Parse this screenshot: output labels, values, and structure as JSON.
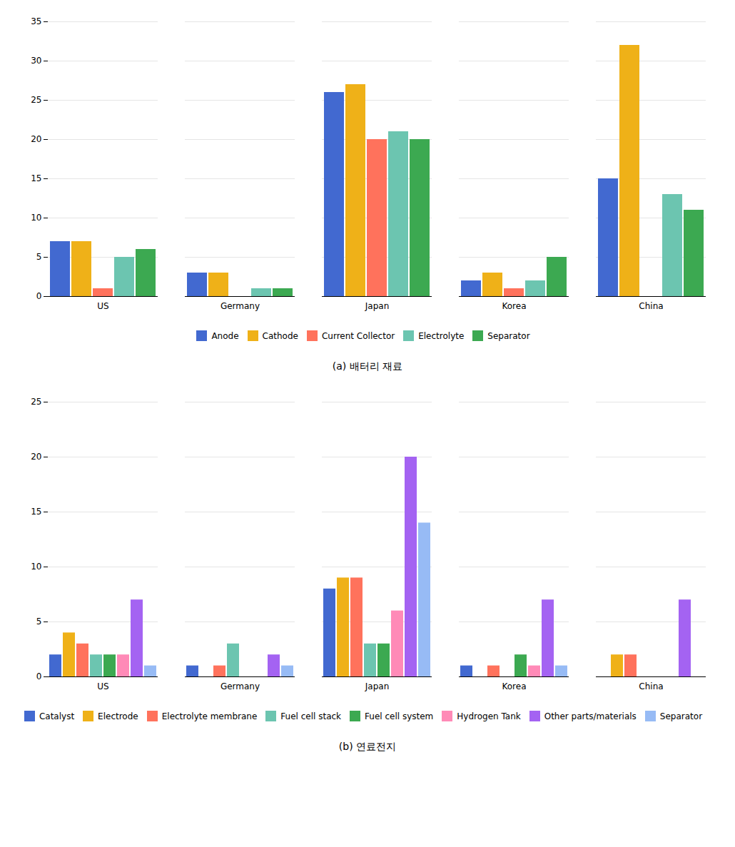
{
  "chart_data": [
    {
      "type": "bar",
      "title": "(a)  배터리 재료",
      "categories": [
        "US",
        "Germany",
        "Japan",
        "Korea",
        "China"
      ],
      "series": [
        {
          "name": "Anode",
          "values": [
            7,
            3,
            26,
            2,
            15
          ]
        },
        {
          "name": "Cathode",
          "values": [
            7,
            3,
            27,
            3,
            32
          ]
        },
        {
          "name": "Current Collector",
          "values": [
            1,
            0,
            20,
            1,
            0
          ]
        },
        {
          "name": "Electrolyte",
          "values": [
            5,
            1,
            21,
            2,
            13
          ]
        },
        {
          "name": "Separator",
          "values": [
            6,
            1,
            20,
            5,
            11
          ]
        }
      ],
      "ylim": [
        0,
        35
      ],
      "yticks": [
        0,
        5,
        10,
        15,
        20,
        25,
        30,
        35
      ],
      "grid": true,
      "legend": "bottom"
    },
    {
      "type": "bar",
      "title": "(b)  연료전지",
      "categories": [
        "US",
        "Germany",
        "Japan",
        "Korea",
        "China"
      ],
      "series": [
        {
          "name": "Catalyst",
          "values": [
            2,
            1,
            8,
            1,
            0
          ]
        },
        {
          "name": "Electrode",
          "values": [
            4,
            0,
            9,
            0,
            2
          ]
        },
        {
          "name": "Electrolyte membrane",
          "values": [
            3,
            1,
            9,
            1,
            2
          ]
        },
        {
          "name": "Fuel cell stack",
          "values": [
            2,
            3,
            3,
            0,
            0
          ]
        },
        {
          "name": "Fuel cell system",
          "values": [
            2,
            0,
            3,
            2,
            0
          ]
        },
        {
          "name": "Hydrogen Tank",
          "values": [
            2,
            0,
            6,
            1,
            0
          ]
        },
        {
          "name": "Other parts/materials",
          "values": [
            7,
            2,
            20,
            7,
            7
          ]
        },
        {
          "name": "Separator",
          "values": [
            1,
            1,
            14,
            1,
            0
          ]
        }
      ],
      "ylim": [
        0,
        25
      ],
      "yticks": [
        0,
        5,
        10,
        15,
        20,
        25
      ],
      "grid": true,
      "legend": "bottom"
    }
  ]
}
